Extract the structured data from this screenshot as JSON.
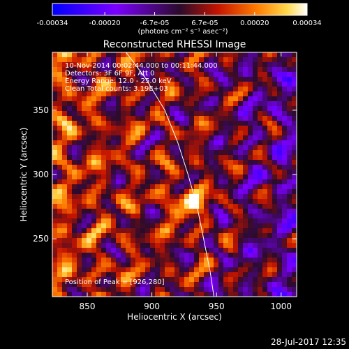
{
  "colorbar": {
    "ticks": [
      "-0.00034",
      "-0.00020",
      "-6.7e-05",
      "6.7e-05",
      "0.00020",
      "0.00034"
    ],
    "tick_values": [
      -0.00034,
      -0.0002,
      -6.7e-05,
      6.7e-05,
      0.0002,
      0.00034
    ],
    "range": [
      -0.00034,
      0.00034
    ],
    "unit_label": "(photons cm⁻² s⁻¹ asec⁻²)",
    "colors": [
      "#0000ff",
      "#7b00ff",
      "#2b0b2b",
      "#c41400",
      "#ff7a00",
      "#ffd84a",
      "#ffffff"
    ]
  },
  "chart_data": {
    "type": "heatmap",
    "title": "Reconstructed RHESSI Image",
    "xlabel": "Heliocentric X (arcsec)",
    "ylabel": "Heliocentric Y (arcsec)",
    "xlim": [
      823,
      1012
    ],
    "ylim": [
      205,
      395
    ],
    "x_ticks": [
      "850",
      "900",
      "950",
      "1000"
    ],
    "y_ticks": [
      "250",
      "300",
      "350"
    ],
    "x_tick_values": [
      850,
      900,
      950,
      1000
    ],
    "y_tick_values": [
      250,
      300,
      350
    ],
    "annotations": [
      "10-Nov-2014 00:02:44.000 to 00:11:44.000",
      "Detectors: 3F 6F 9F, Att 0",
      "Energy Range: 12.0 - 25.0 keV",
      "Clean    Total counts: 3.19E+03"
    ],
    "peak_label": "Position of Peak = [926,280]",
    "peak": [
      926,
      280
    ],
    "limb_curve": [
      [
        880,
        395
      ],
      [
        895,
        375
      ],
      [
        910,
        350
      ],
      [
        920,
        325
      ],
      [
        928,
        300
      ],
      [
        935,
        275
      ],
      [
        940,
        250
      ],
      [
        945,
        225
      ],
      [
        948,
        205
      ]
    ]
  },
  "footer": {
    "date": "28-Jul-2017 12:35"
  }
}
